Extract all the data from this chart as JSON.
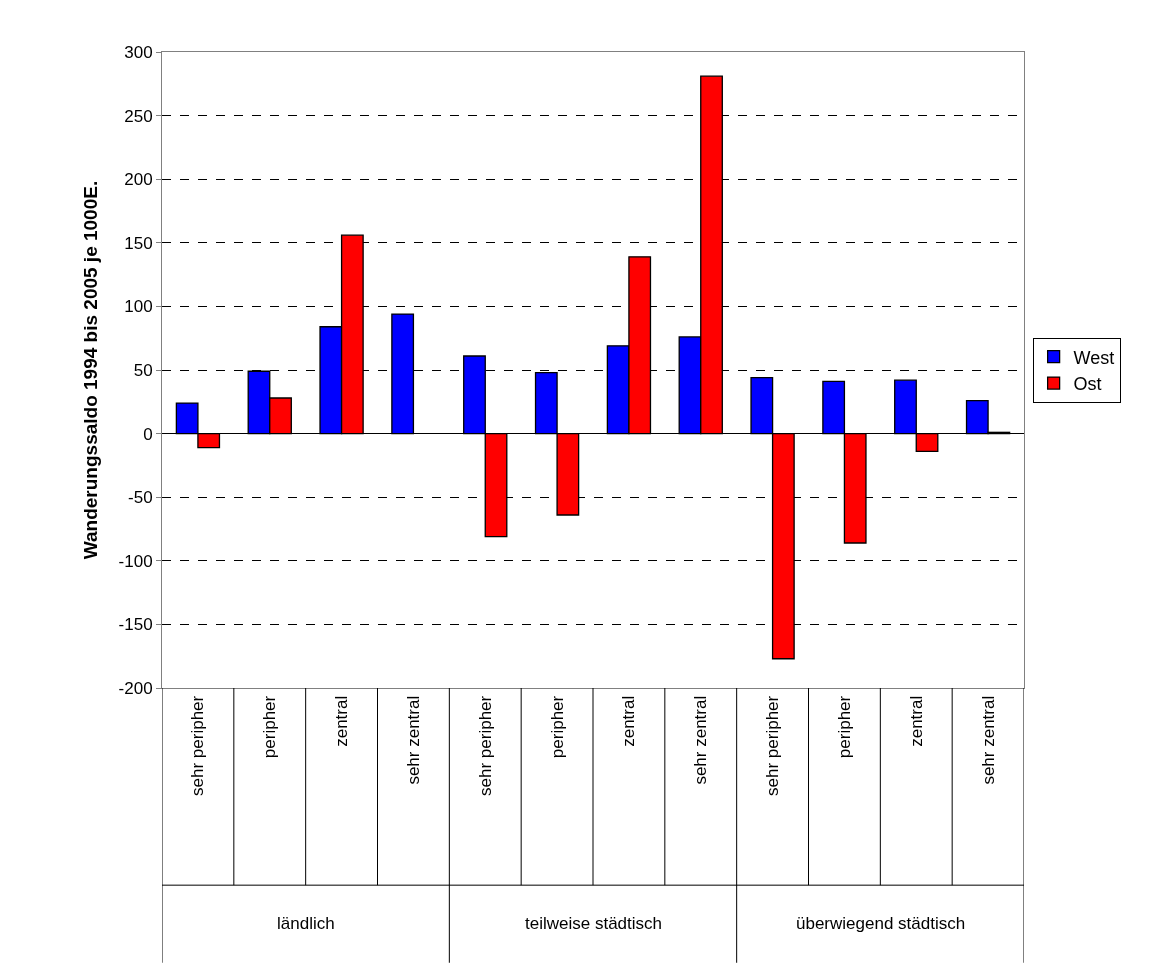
{
  "chart_data": {
    "type": "bar",
    "ylabel": "Wanderungssaldo 1994 bis 2005 je 1000E.",
    "categories": [
      "sehr peripher",
      "peripher",
      "zentral",
      "sehr zentral",
      "sehr peripher",
      "peripher",
      "zentral",
      "sehr zentral",
      "sehr peripher",
      "peripher",
      "zentral",
      "sehr zentral"
    ],
    "annotations": [
      "ländlich",
      "teilweise städtisch",
      "überwiegend städtisch"
    ],
    "series": [
      {
        "name": "West",
        "color": "#0000ff",
        "values": [
          24,
          49,
          84,
          94,
          61,
          48,
          69,
          76,
          44,
          41,
          42,
          26
        ]
      },
      {
        "name": "Ost",
        "color": "#ff0000",
        "values": [
          -11,
          28,
          156,
          null,
          -81,
          -64,
          139,
          281,
          -177,
          -86,
          -14,
          1
        ]
      }
    ],
    "ylim": [
      -200,
      300
    ],
    "yticks": [
      -200,
      -150,
      -100,
      -50,
      0,
      50,
      100,
      150,
      200,
      250,
      300
    ],
    "grid": "y",
    "legend": "right"
  }
}
